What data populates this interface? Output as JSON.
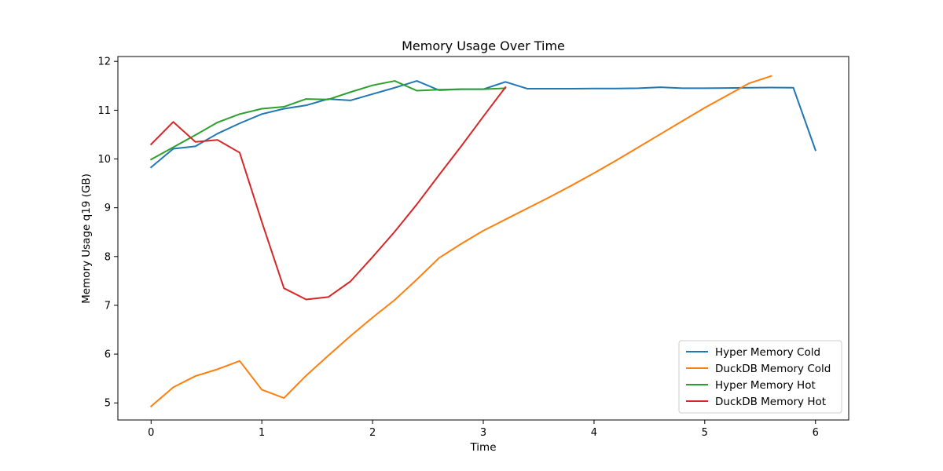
{
  "chart_data": {
    "type": "line",
    "title": "Memory Usage Over Time",
    "xlabel": "Time",
    "ylabel": "Memory Usage q19 (GB)",
    "xlim": [
      -0.3,
      6.3
    ],
    "ylim": [
      4.65,
      12.1
    ],
    "xticks": [
      0,
      1,
      2,
      3,
      4,
      5,
      6
    ],
    "yticks": [
      5,
      6,
      7,
      8,
      9,
      10,
      11,
      12
    ],
    "grid": false,
    "legend_position": "lower-right",
    "series": [
      {
        "name": "Hyper Memory Cold",
        "color": "#1f77b4",
        "x": [
          0,
          0.2,
          0.4,
          0.6,
          0.8,
          1.0,
          1.2,
          1.4,
          1.6,
          1.8,
          2.0,
          2.2,
          2.4,
          2.6,
          2.8,
          3.0,
          3.2,
          3.4,
          3.6,
          3.8,
          4.0,
          4.2,
          4.4,
          4.6,
          4.8,
          5.0,
          5.2,
          5.4,
          5.6,
          5.8,
          6.0
        ],
        "y": [
          9.83,
          10.21,
          10.26,
          10.52,
          10.73,
          10.92,
          11.03,
          11.1,
          11.23,
          11.2,
          11.33,
          11.46,
          11.6,
          11.41,
          11.43,
          11.43,
          11.58,
          11.44,
          11.44,
          11.44,
          11.445,
          11.445,
          11.45,
          11.47,
          11.45,
          11.45,
          11.455,
          11.46,
          11.465,
          11.46,
          10.18
        ]
      },
      {
        "name": "DuckDB Memory Cold",
        "color": "#ff7f0e",
        "x": [
          0,
          0.2,
          0.4,
          0.6,
          0.8,
          1.0,
          1.2,
          1.4,
          1.6,
          1.8,
          2.0,
          2.2,
          2.4,
          2.6,
          2.8,
          3.0,
          3.2,
          3.4,
          3.6,
          3.8,
          4.0,
          4.2,
          4.4,
          4.6,
          4.8,
          5.0,
          5.2,
          5.4,
          5.6
        ],
        "y": [
          4.93,
          5.32,
          5.55,
          5.69,
          5.86,
          5.27,
          5.1,
          5.56,
          5.97,
          6.37,
          6.75,
          7.11,
          7.53,
          7.97,
          8.26,
          8.53,
          8.76,
          8.99,
          9.22,
          9.46,
          9.71,
          9.97,
          10.24,
          10.51,
          10.78,
          11.05,
          11.3,
          11.55,
          11.7
        ]
      },
      {
        "name": "Hyper Memory Hot",
        "color": "#2ca02c",
        "x": [
          0,
          0.2,
          0.4,
          0.6,
          0.8,
          1.0,
          1.2,
          1.4,
          1.6,
          1.8,
          2.0,
          2.2,
          2.4,
          2.6,
          2.8,
          3.0,
          3.2
        ],
        "y": [
          9.99,
          10.24,
          10.49,
          10.75,
          10.92,
          11.03,
          11.07,
          11.23,
          11.22,
          11.37,
          11.51,
          11.6,
          11.4,
          11.42,
          11.43,
          11.43,
          11.45
        ]
      },
      {
        "name": "DuckDB Memory Hot",
        "color": "#d62728",
        "x": [
          0,
          0.2,
          0.4,
          0.6,
          0.8,
          1.0,
          1.2,
          1.4,
          1.6,
          1.8,
          2.0,
          2.2,
          2.4,
          2.6,
          2.8,
          3.0,
          3.2
        ],
        "y": [
          10.3,
          10.76,
          10.35,
          10.39,
          10.13,
          8.71,
          7.35,
          7.12,
          7.17,
          7.49,
          7.99,
          8.51,
          9.07,
          9.67,
          10.26,
          10.87,
          11.47
        ]
      }
    ]
  }
}
